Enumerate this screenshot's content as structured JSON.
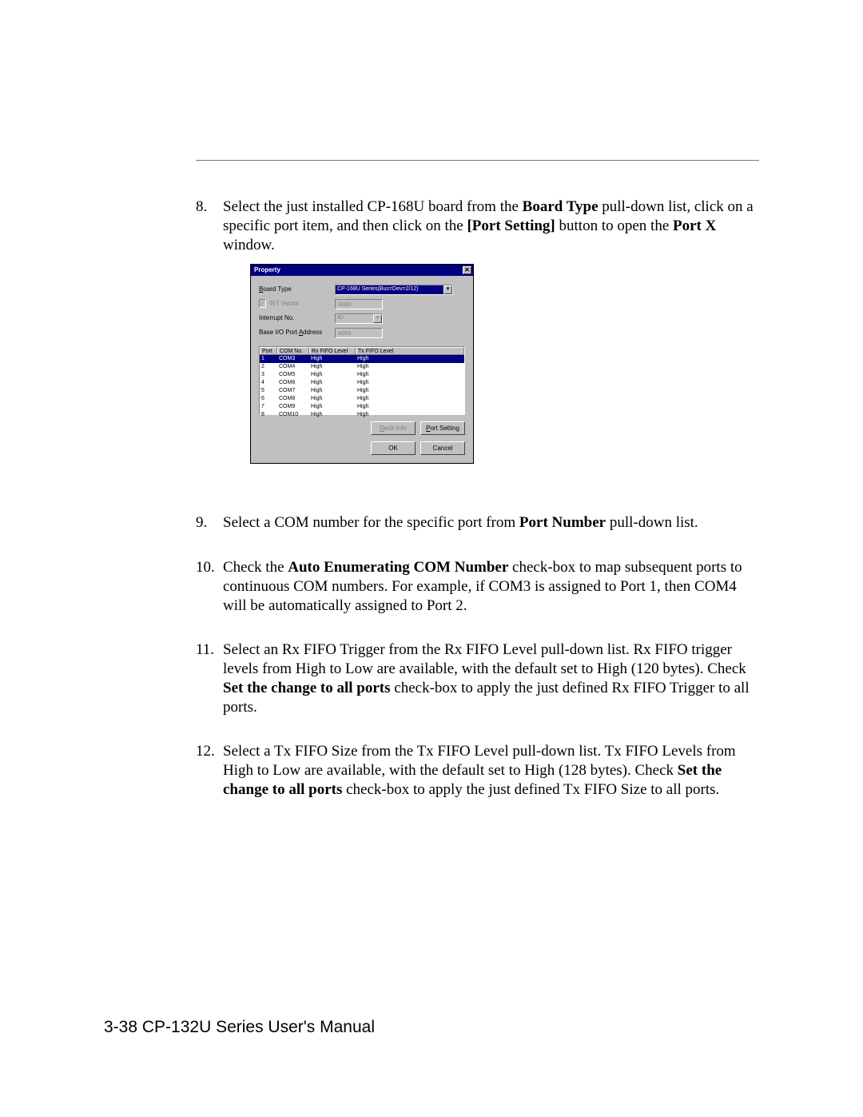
{
  "steps": {
    "s8": {
      "num": "8.",
      "text_a": "Select the just installed CP-168U board from the ",
      "bold_a": "Board Type",
      "text_b": " pull-down list, click on a specific port item, and then click on the ",
      "bold_b": "[Port Setting]",
      "text_c": " button to open the ",
      "bold_c": "Port X",
      "text_d": " window."
    },
    "s9": {
      "num": "9.",
      "text_a": "Select a COM number for the specific port from ",
      "bold_a": "Port Number",
      "text_b": " pull-down list."
    },
    "s10": {
      "num": "10.",
      "text_a": "Check the ",
      "bold_a": "Auto Enumerating COM Number",
      "text_b": " check-box to map subsequent ports to continuous COM numbers. For example, if COM3 is assigned to Port 1, then COM4 will be automatically assigned to Port 2."
    },
    "s11": {
      "num": "11.",
      "text_a": "Select an Rx FIFO Trigger from the Rx FIFO Level pull-down list. Rx FIFO trigger levels from High to Low are available, with the default set to High (120 bytes). Check ",
      "bold_a": "Set the change to all ports",
      "text_b": " check-box to apply the just defined Rx FIFO Trigger to all ports."
    },
    "s12": {
      "num": "12.",
      "text_a": "Select a Tx FIFO Size from the Tx FIFO Level pull-down list. Tx FIFO Levels from High to Low are available, with the default set to High (128 bytes). Check ",
      "bold_a": "Set the change to all ports",
      "text_b": " check-box to apply the just defined Tx FIFO Size to all ports."
    }
  },
  "dialog": {
    "title": "Property",
    "close": "✕",
    "labels": {
      "board_type_pre": "B",
      "board_type": "oard Type",
      "int_vector": "INT Vector",
      "interrupt": "Interrupt No.",
      "base_io_pre": "Base I/O Port ",
      "base_io_ul": "A",
      "base_io_post": "ddress"
    },
    "values": {
      "board_type": "CP-168U Series(Bus=Dev=2/12)",
      "int_vector": "A000",
      "interrupt": "40",
      "base_io": "A000",
      "checkmark": "✓"
    },
    "columns": {
      "port": "Port",
      "com": "COM No.",
      "rx": "Rx FIFO Level",
      "tx": "Tx FIFO Level"
    },
    "rows": [
      {
        "port": "1",
        "com": "COM3",
        "rx": "High",
        "tx": "High",
        "sel": true
      },
      {
        "port": "2",
        "com": "COM4",
        "rx": "High",
        "tx": "High"
      },
      {
        "port": "3",
        "com": "COM5",
        "rx": "High",
        "tx": "High"
      },
      {
        "port": "4",
        "com": "COM6",
        "rx": "High",
        "tx": "High"
      },
      {
        "port": "5",
        "com": "COM7",
        "rx": "High",
        "tx": "High"
      },
      {
        "port": "6",
        "com": "COM8",
        "rx": "High",
        "tx": "High"
      },
      {
        "port": "7",
        "com": "COM9",
        "rx": "High",
        "tx": "High"
      },
      {
        "port": "8",
        "com": "COM10",
        "rx": "High",
        "tx": "High"
      }
    ],
    "buttons": {
      "deck_info_pre": "D",
      "deck_info": "eck Info",
      "port_setting_pre": "P",
      "port_setting": "ort Setting",
      "ok": "OK",
      "cancel": "Cancel"
    }
  },
  "footer": "3-38  CP-132U Series User's Manual"
}
